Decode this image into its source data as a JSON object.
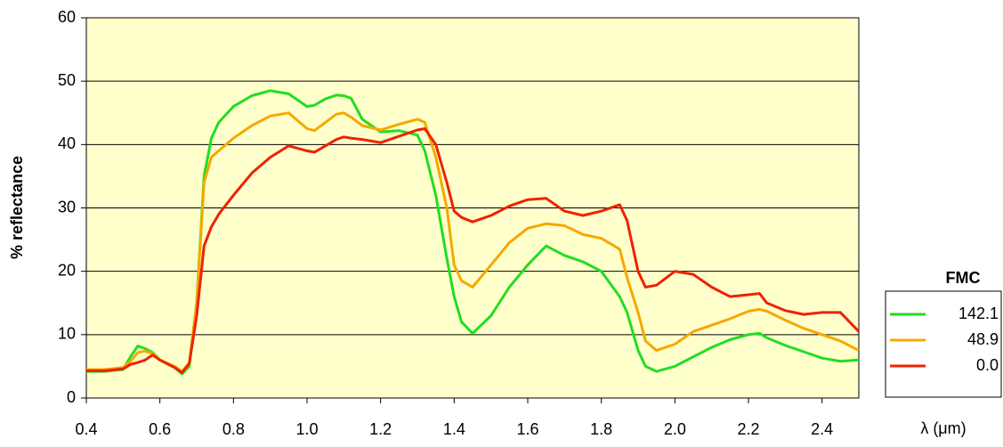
{
  "chart_data": {
    "type": "line",
    "x_label": "λ (μm)",
    "y_label": "% reflectance",
    "legend_title": "FMC",
    "x": [
      0.4,
      0.45,
      0.5,
      0.52,
      0.54,
      0.56,
      0.58,
      0.6,
      0.64,
      0.66,
      0.68,
      0.7,
      0.72,
      0.74,
      0.76,
      0.8,
      0.85,
      0.9,
      0.95,
      1.0,
      1.02,
      1.05,
      1.08,
      1.1,
      1.12,
      1.15,
      1.2,
      1.25,
      1.3,
      1.32,
      1.35,
      1.38,
      1.4,
      1.42,
      1.45,
      1.5,
      1.55,
      1.6,
      1.65,
      1.7,
      1.75,
      1.8,
      1.85,
      1.87,
      1.9,
      1.92,
      1.95,
      2.0,
      2.05,
      2.1,
      2.15,
      2.2,
      2.23,
      2.25,
      2.3,
      2.35,
      2.4,
      2.45,
      2.5
    ],
    "series": [
      {
        "name": "142.1",
        "color": "#22dd22",
        "values": [
          4.2,
          4.2,
          4.5,
          6.5,
          8.2,
          7.8,
          7.2,
          6.0,
          4.8,
          3.8,
          5,
          15,
          35,
          41,
          43.5,
          46,
          47.7,
          48.5,
          48,
          46,
          46.2,
          47.2,
          47.8,
          47.7,
          47.3,
          44,
          42,
          42.2,
          41.5,
          39,
          32,
          22,
          16,
          12,
          10.2,
          13,
          17.5,
          21,
          24,
          22.5,
          21.5,
          20,
          16,
          13.5,
          7.5,
          5,
          4.2,
          5,
          6.5,
          8,
          9.2,
          10,
          10.2,
          9.5,
          8.3,
          7.3,
          6.3,
          5.8,
          6.0
        ]
      },
      {
        "name": "48.9",
        "color": "#f5a800",
        "values": [
          4.5,
          4.5,
          4.8,
          5.8,
          7.2,
          7.4,
          7.0,
          6.0,
          5.0,
          4.2,
          5.5,
          15,
          34,
          38,
          39,
          41,
          43,
          44.5,
          45,
          42.5,
          42.2,
          43.5,
          44.8,
          45,
          44.3,
          43,
          42.3,
          43.2,
          44,
          43.5,
          38,
          30,
          21,
          18.5,
          17.5,
          21,
          24.5,
          26.8,
          27.5,
          27.2,
          25.8,
          25.2,
          23.5,
          19,
          13.5,
          9,
          7.5,
          8.5,
          10.5,
          11.5,
          12.5,
          13.7,
          14,
          13.7,
          12.3,
          11,
          10,
          9,
          7.5
        ]
      },
      {
        "name": "0.0",
        "color": "#ee2200",
        "values": [
          4.3,
          4.3,
          4.6,
          5.3,
          5.6,
          6.0,
          6.8,
          6.0,
          4.8,
          4.0,
          5.5,
          13,
          24,
          27,
          29,
          32,
          35.5,
          38,
          39.8,
          39,
          38.8,
          39.8,
          40.8,
          41.2,
          41,
          40.8,
          40.3,
          41.3,
          42.3,
          42.5,
          40,
          34,
          29.5,
          28.5,
          27.8,
          28.8,
          30.3,
          31.3,
          31.5,
          29.5,
          28.8,
          29.5,
          30.5,
          28,
          20,
          17.5,
          17.8,
          20,
          19.5,
          17.5,
          16,
          16.3,
          16.5,
          15,
          13.8,
          13.2,
          13.5,
          13.5,
          10.5
        ]
      }
    ],
    "xlim": [
      0.4,
      2.5
    ],
    "ylim": [
      0,
      60
    ],
    "xticks": [
      0.4,
      0.6,
      0.8,
      {
        "value": 1,
        "label": "1.0"
      },
      1.2,
      1.4,
      1.6,
      1.8,
      {
        "value": 2,
        "label": "2.0"
      },
      2.2,
      2.4
    ],
    "yticks": [
      0,
      10,
      20,
      30,
      40,
      50,
      60
    ],
    "grid": true,
    "legend": "right"
  }
}
